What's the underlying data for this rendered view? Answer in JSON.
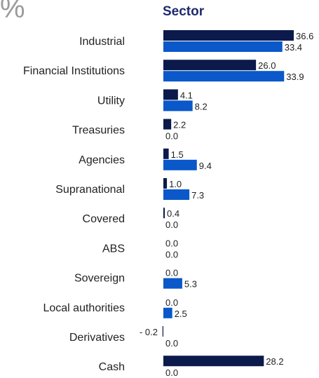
{
  "unit": "%",
  "chart_data": {
    "type": "bar",
    "orientation": "horizontal",
    "title": "Sector",
    "categories": [
      "Industrial",
      "Financial Institutions",
      "Utility",
      "Treasuries",
      "Agencies",
      "Supranational",
      "Covered",
      "ABS",
      "Sovereign",
      "Local authorities",
      "Derivatives",
      "Cash"
    ],
    "series": [
      {
        "color": "#0b1a4a",
        "values": [
          36.6,
          26.0,
          4.1,
          2.2,
          1.5,
          1.0,
          0.4,
          0.0,
          0.0,
          0.0,
          -0.2,
          28.2
        ],
        "labels": [
          "36.6",
          "26.0",
          "4.1",
          "2.2",
          "1.5",
          "1.0",
          "0.4",
          "0.0",
          "0.0",
          "0.0",
          "- 0.2",
          "28.2"
        ]
      },
      {
        "color": "#0a58c9",
        "values": [
          33.4,
          33.9,
          8.2,
          0.0,
          9.4,
          7.3,
          0.0,
          0.0,
          5.3,
          2.5,
          0.0,
          0.0
        ],
        "labels": [
          "33.4",
          "33.9",
          "8.2",
          "0.0",
          "9.4",
          "7.3",
          "0.0",
          "0.0",
          "5.3",
          "2.5",
          "0.0",
          "0.0"
        ]
      }
    ],
    "xlim": [
      0,
      36.6
    ],
    "grid": false,
    "legend": "none"
  }
}
